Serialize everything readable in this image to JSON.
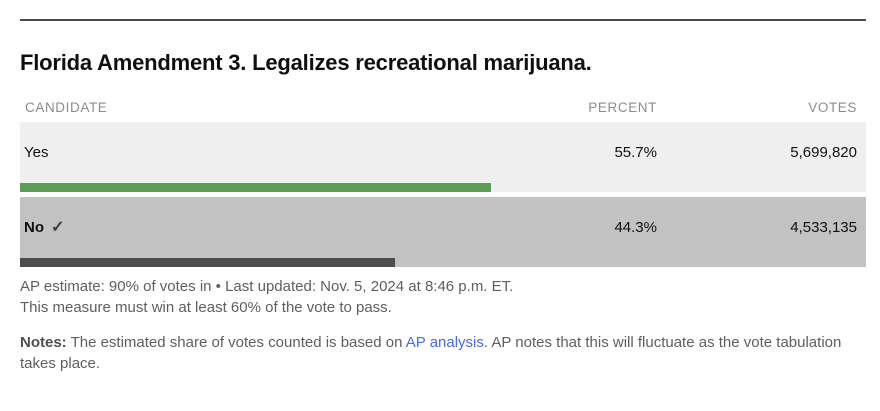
{
  "title": "Florida Amendment 3. Legalizes recreational marijuana.",
  "table": {
    "headers": {
      "candidate": "CANDIDATE",
      "percent": "PERCENT",
      "votes": "VOTES"
    },
    "rows": [
      {
        "name": "Yes",
        "percent": "55.7%",
        "percent_value": 55.7,
        "votes": "5,699,820",
        "winner": false,
        "row_bg": "#efefef",
        "bar_color": "#5d9c55"
      },
      {
        "name": "No",
        "percent": "44.3%",
        "percent_value": 44.3,
        "votes": "4,533,135",
        "winner": true,
        "row_bg": "#c2c2c2",
        "bar_color": "#4d4d4d"
      }
    ]
  },
  "icons": {
    "winner_check": "✓"
  },
  "footer": {
    "estimate_line": "AP estimate: 90% of votes in • Last updated: Nov. 5, 2024 at 8:46 p.m. ET.",
    "measure_line": "This measure must win at least 60% of the vote to pass.",
    "notes_label": "Notes:",
    "notes_before_link": " The estimated share of votes counted is based on ",
    "notes_link": "AP analysis",
    "notes_after_link": ". AP notes that this will fluctuate as the vote tabulation takes place."
  },
  "colors": {
    "top_rule": "#4a4a4a",
    "header_text": "#8c8c8c",
    "yes_row_bg": "#efefef",
    "no_row_bg": "#c2c2c2",
    "yes_bar": "#5d9c55",
    "no_bar": "#4d4d4d",
    "footer_text": "#5e5e5e",
    "link": "#4a6bdb"
  },
  "chart_data": {
    "type": "bar",
    "orientation": "horizontal",
    "title": "Florida Amendment 3. Legalizes recreational marijuana.",
    "categories": [
      "Yes",
      "No"
    ],
    "series": [
      {
        "name": "Percent",
        "values": [
          55.7,
          44.3
        ]
      },
      {
        "name": "Votes",
        "values": [
          5699820,
          4533135
        ]
      }
    ],
    "winner": "No",
    "xlim": [
      0,
      100
    ],
    "annotations": [
      "AP estimate: 90% of votes in",
      "Last updated: Nov. 5, 2024 at 8:46 p.m. ET.",
      "This measure must win at least 60% of the vote to pass."
    ]
  }
}
